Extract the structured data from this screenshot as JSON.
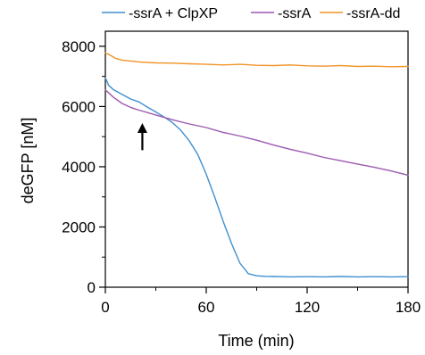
{
  "chart_data": {
    "type": "line",
    "xlabel": "Time (min)",
    "ylabel": "deGFP [nM]",
    "xlim": [
      0,
      180
    ],
    "ylim": [
      0,
      8500
    ],
    "x_ticks": [
      0,
      60,
      120,
      180
    ],
    "y_ticks": [
      0,
      2000,
      4000,
      6000,
      8000
    ],
    "grid": false,
    "legend_position": "top",
    "annotation": {
      "type": "arrow",
      "x": 22,
      "y_from": 4550,
      "y_to": 5450,
      "color": "#000000"
    },
    "series": [
      {
        "name": "-ssrA + ClpXP",
        "color": "#3f8fce",
        "x": [
          0,
          2,
          5,
          10,
          15,
          20,
          25,
          30,
          35,
          40,
          45,
          50,
          55,
          60,
          65,
          70,
          75,
          80,
          85,
          90,
          95,
          100,
          105,
          110,
          120,
          130,
          140,
          150,
          160,
          170,
          180
        ],
        "y": [
          6950,
          6700,
          6550,
          6400,
          6250,
          6150,
          5980,
          5820,
          5650,
          5460,
          5200,
          4850,
          4400,
          3750,
          3000,
          2200,
          1450,
          800,
          450,
          380,
          360,
          355,
          350,
          345,
          350,
          345,
          355,
          345,
          350,
          345,
          350
        ]
      },
      {
        "name": "-ssrA",
        "color": "#9b59b0",
        "x": [
          0,
          5,
          10,
          15,
          20,
          30,
          40,
          50,
          60,
          70,
          80,
          90,
          100,
          110,
          120,
          130,
          140,
          150,
          160,
          170,
          180
        ],
        "y": [
          6550,
          6300,
          6100,
          5970,
          5880,
          5720,
          5560,
          5420,
          5300,
          5140,
          5020,
          4880,
          4720,
          4580,
          4450,
          4310,
          4200,
          4090,
          3980,
          3860,
          3720
        ]
      },
      {
        "name": "-ssrA-dd",
        "color": "#f0952a",
        "x": [
          0,
          3,
          6,
          10,
          15,
          20,
          30,
          40,
          50,
          60,
          70,
          80,
          90,
          100,
          110,
          120,
          130,
          140,
          150,
          160,
          170,
          180
        ],
        "y": [
          7780,
          7700,
          7600,
          7540,
          7510,
          7480,
          7450,
          7440,
          7420,
          7400,
          7380,
          7400,
          7370,
          7360,
          7380,
          7350,
          7340,
          7360,
          7330,
          7340,
          7320,
          7330
        ]
      }
    ]
  }
}
